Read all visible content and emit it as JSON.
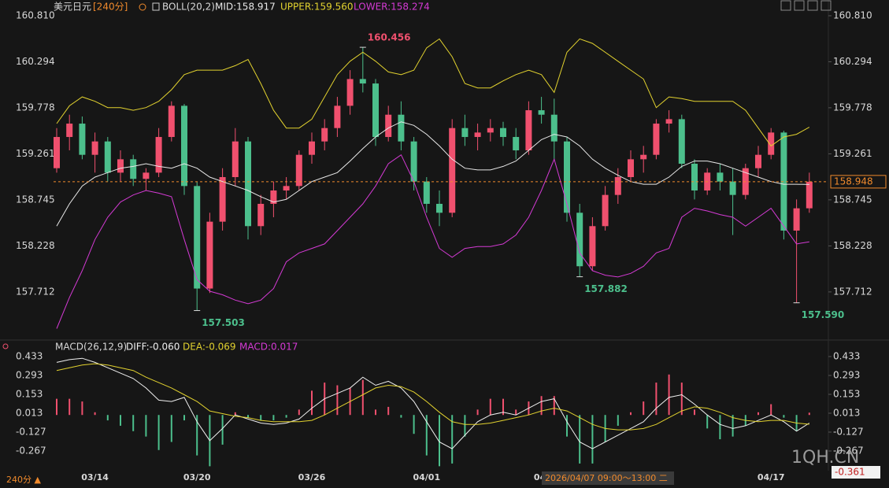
{
  "chart_data": {
    "type": "candlestick",
    "title": "美元日元",
    "period": "[240分]",
    "indicator": "BOLL(20,2)",
    "categories": [
      null,
      null,
      null,
      "03/14",
      null,
      null,
      null,
      null,
      null,
      null,
      null,
      "03/20",
      null,
      null,
      null,
      null,
      null,
      null,
      null,
      null,
      "03/26",
      null,
      null,
      null,
      null,
      null,
      null,
      null,
      null,
      "04/01",
      null,
      null,
      null,
      null,
      null,
      null,
      null,
      null,
      "04/",
      null,
      null,
      null,
      null,
      null,
      null,
      null,
      null,
      null,
      null,
      null,
      null,
      null,
      null,
      null,
      null,
      null,
      "04/17",
      null,
      null,
      null
    ],
    "open": [
      159.1,
      159.45,
      159.6,
      159.25,
      159.4,
      159.05,
      159.2,
      158.98,
      159.05,
      159.45,
      159.8,
      158.9,
      157.75,
      158.5,
      159.0,
      159.4,
      158.45,
      158.7,
      158.85,
      158.9,
      159.25,
      159.4,
      159.55,
      159.8,
      160.1,
      160.05,
      159.45,
      159.7,
      159.4,
      158.95,
      158.7,
      158.6,
      159.55,
      159.45,
      159.5,
      159.55,
      159.45,
      159.3,
      159.75,
      159.7,
      159.4,
      158.6,
      158.0,
      158.45,
      158.8,
      159.0,
      159.2,
      159.25,
      159.6,
      159.65,
      159.15,
      158.85,
      159.05,
      158.95,
      158.8,
      159.1,
      159.25,
      159.5,
      158.4,
      158.65
    ],
    "high": [
      159.55,
      159.7,
      159.68,
      159.5,
      159.45,
      159.3,
      159.25,
      159.1,
      159.55,
      159.85,
      159.82,
      158.95,
      158.6,
      159.1,
      159.55,
      159.45,
      158.8,
      158.95,
      159.0,
      159.3,
      159.5,
      159.65,
      159.9,
      160.2,
      160.456,
      160.1,
      159.8,
      159.85,
      159.45,
      159.0,
      158.85,
      159.65,
      159.7,
      159.6,
      159.65,
      159.62,
      159.55,
      159.85,
      159.9,
      159.88,
      159.45,
      158.7,
      158.55,
      158.9,
      159.1,
      159.3,
      159.35,
      159.65,
      159.75,
      159.7,
      159.2,
      159.1,
      159.15,
      159.1,
      159.15,
      159.35,
      159.55,
      159.52,
      158.75,
      159.05
    ],
    "low": [
      159.05,
      159.3,
      159.2,
      159.05,
      158.95,
      158.95,
      158.9,
      158.85,
      159.0,
      159.4,
      158.8,
      157.503,
      157.7,
      158.4,
      158.9,
      158.3,
      158.35,
      158.55,
      158.75,
      158.85,
      159.15,
      159.3,
      159.45,
      159.7,
      159.95,
      159.35,
      159.4,
      159.3,
      158.85,
      158.6,
      158.45,
      158.55,
      159.35,
      159.3,
      159.4,
      159.35,
      159.2,
      159.25,
      159.6,
      159.2,
      158.5,
      157.882,
      157.95,
      158.4,
      158.7,
      158.95,
      159.05,
      159.2,
      159.5,
      159.1,
      158.75,
      158.8,
      158.85,
      158.35,
      158.75,
      159.0,
      159.2,
      158.3,
      157.59,
      158.6
    ],
    "close": [
      159.45,
      159.6,
      159.25,
      159.4,
      159.05,
      159.2,
      158.98,
      159.05,
      159.45,
      159.8,
      158.9,
      157.75,
      158.5,
      159.0,
      159.4,
      158.45,
      158.7,
      158.85,
      158.9,
      159.25,
      159.4,
      159.55,
      159.8,
      160.1,
      160.05,
      159.45,
      159.7,
      159.4,
      158.95,
      158.7,
      158.6,
      159.55,
      159.45,
      159.5,
      159.55,
      159.45,
      159.3,
      159.75,
      159.7,
      159.4,
      158.6,
      158.0,
      158.45,
      158.8,
      159.0,
      159.2,
      159.25,
      159.6,
      159.65,
      159.15,
      158.85,
      159.05,
      158.95,
      158.8,
      159.1,
      159.25,
      159.5,
      158.4,
      158.65,
      158.948
    ],
    "up_color": "#f0506e",
    "down_color": "#4cbf8c",
    "series": [
      {
        "name": "MID:158.917",
        "color": "#e8e8e8",
        "values": [
          158.45,
          158.7,
          158.9,
          159.0,
          159.05,
          159.1,
          159.12,
          159.15,
          159.12,
          159.1,
          159.15,
          159.1,
          159.0,
          158.95,
          158.9,
          158.85,
          158.78,
          158.72,
          158.75,
          158.85,
          158.95,
          159.0,
          159.05,
          159.18,
          159.32,
          159.45,
          159.55,
          159.62,
          159.58,
          159.48,
          159.35,
          159.2,
          159.1,
          159.08,
          159.08,
          159.12,
          159.18,
          159.3,
          159.42,
          159.48,
          159.45,
          159.35,
          159.2,
          159.1,
          159.02,
          158.95,
          158.92,
          158.92,
          159.0,
          159.12,
          159.18,
          159.18,
          159.15,
          159.1,
          159.05,
          159.0,
          158.95,
          158.92,
          158.92,
          158.917
        ]
      },
      {
        "name": "UPPER:159.560",
        "color": "#e2d22f",
        "values": [
          159.6,
          159.8,
          159.9,
          159.85,
          159.78,
          159.78,
          159.75,
          159.78,
          159.85,
          159.98,
          160.15,
          160.2,
          160.2,
          160.2,
          160.25,
          160.32,
          160.05,
          159.75,
          159.55,
          159.55,
          159.65,
          159.9,
          160.15,
          160.3,
          160.4,
          160.3,
          160.18,
          160.15,
          160.2,
          160.45,
          160.55,
          160.35,
          160.05,
          160.0,
          160.0,
          160.08,
          160.15,
          160.2,
          160.15,
          159.95,
          160.4,
          160.55,
          160.5,
          160.4,
          160.3,
          160.2,
          160.1,
          159.78,
          159.9,
          159.88,
          159.85,
          159.85,
          159.85,
          159.85,
          159.75,
          159.55,
          159.35,
          159.45,
          159.48,
          159.56
        ]
      },
      {
        "name": "LOWER:158.274",
        "color": "#d43ad4",
        "values": [
          157.3,
          157.65,
          157.95,
          158.3,
          158.55,
          158.72,
          158.8,
          158.85,
          158.82,
          158.78,
          158.3,
          157.85,
          157.72,
          157.68,
          157.62,
          157.58,
          157.62,
          157.75,
          158.05,
          158.15,
          158.2,
          158.25,
          158.4,
          158.55,
          158.7,
          158.9,
          159.15,
          159.25,
          158.95,
          158.55,
          158.2,
          158.1,
          158.2,
          158.22,
          158.22,
          158.25,
          158.35,
          158.55,
          158.85,
          159.2,
          158.7,
          158.15,
          157.95,
          157.9,
          157.88,
          157.92,
          158.0,
          158.15,
          158.2,
          158.55,
          158.65,
          158.62,
          158.58,
          158.55,
          158.45,
          158.55,
          158.65,
          158.45,
          158.25,
          158.274
        ]
      }
    ],
    "annotations": [
      {
        "label": "160.456",
        "value": 160.456
      },
      {
        "label": "157.503",
        "value": 157.503
      },
      {
        "label": "157.882",
        "value": 157.882
      },
      {
        "label": "157.590",
        "value": 157.59
      }
    ],
    "ylim": [
      157.19,
      160.81
    ],
    "yticks": [
      {
        "value": 160.81,
        "label": "160.810"
      },
      160.294,
      159.778,
      159.261,
      158.745,
      158.228,
      157.712
    ],
    "grid": false,
    "macd": {
      "title": "MACD(26,12,9)",
      "ylim": [
        -0.413,
        0.468
      ],
      "yticks": [
        0.433,
        0.293,
        0.153,
        0.013,
        -0.127,
        -0.267
      ],
      "marker": "-0.361",
      "series": [
        {
          "name": "DIFF:-0.060",
          "color": "#f0f0f0",
          "values": [
            0.39,
            0.41,
            0.42,
            0.39,
            0.35,
            0.31,
            0.27,
            0.2,
            0.11,
            0.1,
            0.13,
            -0.05,
            -0.19,
            -0.1,
            0.0,
            -0.03,
            -0.06,
            -0.07,
            -0.06,
            -0.03,
            0.05,
            0.12,
            0.16,
            0.2,
            0.28,
            0.22,
            0.25,
            0.2,
            0.1,
            -0.05,
            -0.2,
            -0.25,
            -0.15,
            -0.05,
            0.0,
            0.02,
            0.0,
            0.05,
            0.1,
            0.12,
            -0.05,
            -0.2,
            -0.25,
            -0.2,
            -0.15,
            -0.1,
            -0.05,
            0.05,
            0.13,
            0.15,
            0.08,
            0.0,
            -0.07,
            -0.1,
            -0.08,
            -0.04,
            0.0,
            -0.05,
            -0.12,
            -0.06
          ]
        },
        {
          "name": "DEA:-0.069",
          "color": "#e2d22f",
          "values": [
            0.33,
            0.35,
            0.37,
            0.38,
            0.37,
            0.35,
            0.33,
            0.28,
            0.24,
            0.2,
            0.15,
            0.1,
            0.03,
            0.01,
            -0.01,
            -0.02,
            -0.04,
            -0.05,
            -0.05,
            -0.05,
            -0.04,
            0.0,
            0.05,
            0.1,
            0.15,
            0.2,
            0.22,
            0.21,
            0.17,
            0.1,
            0.02,
            -0.05,
            -0.07,
            -0.07,
            -0.06,
            -0.04,
            -0.02,
            0.0,
            0.03,
            0.05,
            0.03,
            -0.02,
            -0.07,
            -0.1,
            -0.11,
            -0.11,
            -0.1,
            -0.07,
            -0.02,
            0.03,
            0.06,
            0.05,
            0.02,
            -0.02,
            -0.04,
            -0.05,
            -0.04,
            -0.04,
            -0.06,
            -0.069
          ]
        }
      ],
      "hist": {
        "name": "MACD:0.017",
        "color": "#d43ad4",
        "values": [
          0.12,
          0.12,
          0.1,
          0.02,
          -0.04,
          -0.08,
          -0.12,
          -0.16,
          -0.26,
          -0.2,
          -0.04,
          -0.3,
          -0.38,
          -0.22,
          0.02,
          -0.02,
          -0.04,
          -0.04,
          -0.02,
          0.04,
          0.18,
          0.24,
          0.22,
          0.2,
          0.26,
          0.04,
          0.06,
          -0.02,
          -0.14,
          -0.3,
          -0.38,
          -0.36,
          -0.16,
          0.04,
          0.12,
          0.12,
          0.04,
          0.1,
          0.14,
          0.14,
          -0.16,
          -0.36,
          -0.36,
          -0.2,
          -0.08,
          0.02,
          0.1,
          0.24,
          0.3,
          0.24,
          0.04,
          -0.1,
          -0.18,
          -0.16,
          -0.08,
          0.02,
          0.08,
          -0.02,
          -0.12,
          0.017
        ]
      }
    },
    "tooltip": "2026/04/07 09:00～13:00 二",
    "footer": "240分 ▲",
    "watermark": "1QH.CN"
  }
}
